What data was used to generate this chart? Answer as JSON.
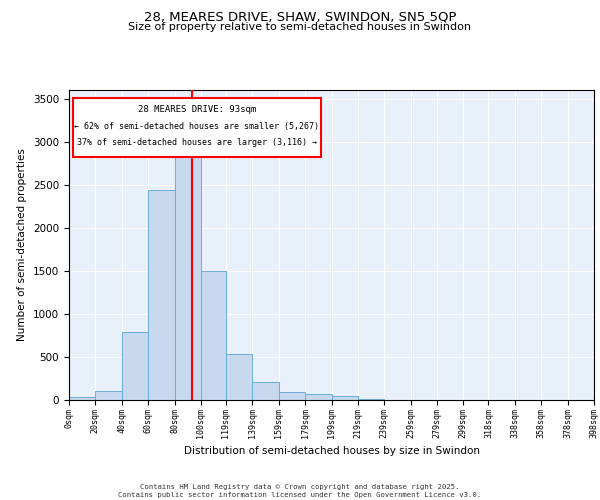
{
  "title1": "28, MEARES DRIVE, SHAW, SWINDON, SN5 5QP",
  "title2": "Size of property relative to semi-detached houses in Swindon",
  "xlabel": "Distribution of semi-detached houses by size in Swindon",
  "ylabel": "Number of semi-detached properties",
  "bar_color": "#c8d9ef",
  "bar_edge_color": "#6aaed6",
  "property_line_x": 93,
  "annotation_title": "28 MEARES DRIVE: 93sqm",
  "annotation_line1": "← 62% of semi-detached houses are smaller (5,267)",
  "annotation_line2": "37% of semi-detached houses are larger (3,116) →",
  "footnote1": "Contains HM Land Registry data © Crown copyright and database right 2025.",
  "footnote2": "Contains public sector information licensed under the Open Government Licence v3.0.",
  "bins": [
    0,
    20,
    40,
    60,
    80,
    100,
    119,
    139,
    159,
    179,
    199,
    219,
    239,
    259,
    279,
    299,
    318,
    338,
    358,
    378,
    398
  ],
  "bin_labels": [
    "0sqm",
    "20sqm",
    "40sqm",
    "60sqm",
    "80sqm",
    "100sqm",
    "119sqm",
    "139sqm",
    "159sqm",
    "179sqm",
    "199sqm",
    "219sqm",
    "239sqm",
    "259sqm",
    "279sqm",
    "299sqm",
    "318sqm",
    "338sqm",
    "358sqm",
    "378sqm",
    "398sqm"
  ],
  "counts": [
    30,
    110,
    790,
    2440,
    3000,
    1500,
    540,
    210,
    95,
    72,
    52,
    10,
    0,
    0,
    0,
    0,
    0,
    0,
    0,
    0
  ],
  "ylim": [
    0,
    3600
  ],
  "yticks": [
    0,
    500,
    1000,
    1500,
    2000,
    2500,
    3000,
    3500
  ],
  "xlim_max": 398,
  "background_color": "#e8f0fa",
  "grid_color": "#ffffff"
}
